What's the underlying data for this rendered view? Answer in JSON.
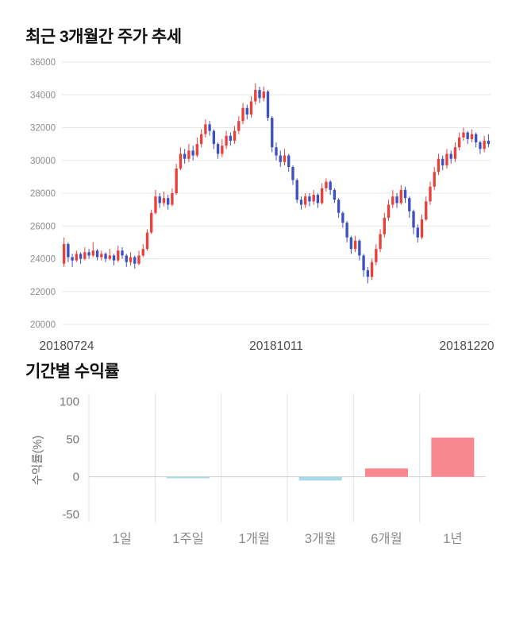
{
  "sections": {
    "price_chart": {
      "title": "최근 3개월간 주가 추세"
    },
    "returns_chart": {
      "title": "기간별 수익률"
    }
  },
  "chart_data": [
    {
      "type": "candlestick",
      "title": "최근 3개월간 주가 추세",
      "x_tick_labels": [
        "20180724",
        "20181011",
        "20181220"
      ],
      "ylim": [
        20000,
        36000
      ],
      "y_ticks": [
        36000,
        34000,
        32000,
        30000,
        28000,
        26000,
        24000,
        22000,
        20000
      ],
      "grid": "horizontal",
      "legend": "none",
      "up_color": "#e8413c",
      "down_color": "#3f51c1",
      "candles_format": [
        "open",
        "high",
        "low",
        "close"
      ],
      "candles": [
        [
          23700,
          25300,
          23500,
          24900
        ],
        [
          24900,
          25000,
          23800,
          24100
        ],
        [
          24100,
          24300,
          23500,
          23900
        ],
        [
          23900,
          24500,
          23800,
          24300
        ],
        [
          24300,
          24400,
          23700,
          24000
        ],
        [
          24000,
          24700,
          23900,
          24400
        ],
        [
          24400,
          24600,
          24000,
          24200
        ],
        [
          24200,
          25000,
          24100,
          24500
        ],
        [
          24500,
          24600,
          23900,
          24100
        ],
        [
          24100,
          24500,
          23900,
          24300
        ],
        [
          24300,
          24400,
          23800,
          24000
        ],
        [
          24000,
          24600,
          23900,
          24200
        ],
        [
          24200,
          24300,
          23600,
          23900
        ],
        [
          23900,
          24800,
          23800,
          24500
        ],
        [
          24500,
          24700,
          24000,
          24200
        ],
        [
          24200,
          24300,
          23500,
          23800
        ],
        [
          23800,
          24400,
          23600,
          24100
        ],
        [
          24100,
          24200,
          23400,
          23700
        ],
        [
          23700,
          24500,
          23600,
          24200
        ],
        [
          24200,
          24900,
          24100,
          24600
        ],
        [
          24600,
          25800,
          24500,
          25600
        ],
        [
          25600,
          27000,
          25500,
          26800
        ],
        [
          26800,
          28200,
          26700,
          27800
        ],
        [
          27800,
          28000,
          27100,
          27400
        ],
        [
          27400,
          28100,
          27200,
          27700
        ],
        [
          27700,
          27900,
          27000,
          27300
        ],
        [
          27300,
          28300,
          27200,
          28000
        ],
        [
          28000,
          29800,
          27900,
          29500
        ],
        [
          29500,
          30800,
          29400,
          30400
        ],
        [
          30400,
          30700,
          29800,
          30100
        ],
        [
          30100,
          31000,
          29900,
          30600
        ],
        [
          30600,
          30900,
          30000,
          30300
        ],
        [
          30300,
          31400,
          30200,
          31000
        ],
        [
          31000,
          31900,
          30800,
          31600
        ],
        [
          31600,
          32500,
          31400,
          32200
        ],
        [
          32200,
          32400,
          31500,
          31800
        ],
        [
          31800,
          31900,
          30700,
          31000
        ],
        [
          31000,
          31100,
          30100,
          30400
        ],
        [
          30400,
          31300,
          30200,
          30900
        ],
        [
          30900,
          31800,
          30700,
          31500
        ],
        [
          31500,
          31700,
          30900,
          31200
        ],
        [
          31200,
          32100,
          31000,
          31800
        ],
        [
          31800,
          32700,
          31600,
          32400
        ],
        [
          32400,
          33500,
          32200,
          33200
        ],
        [
          33200,
          33400,
          32500,
          32800
        ],
        [
          32800,
          33900,
          32600,
          33600
        ],
        [
          33600,
          34700,
          33400,
          34300
        ],
        [
          34300,
          34500,
          33500,
          33800
        ],
        [
          33800,
          34500,
          33600,
          34200
        ],
        [
          34200,
          34300,
          32400,
          32600
        ],
        [
          32600,
          32700,
          30500,
          30800
        ],
        [
          30800,
          31100,
          30000,
          30300
        ],
        [
          30300,
          30600,
          29600,
          29900
        ],
        [
          29900,
          30700,
          29700,
          30300
        ],
        [
          30300,
          30400,
          29300,
          29600
        ],
        [
          29600,
          29700,
          28500,
          28800
        ],
        [
          28800,
          28900,
          27400,
          27600
        ],
        [
          27600,
          27800,
          27000,
          27300
        ],
        [
          27300,
          28000,
          27100,
          27800
        ],
        [
          27800,
          28000,
          27200,
          27500
        ],
        [
          27500,
          28200,
          27300,
          27900
        ],
        [
          27900,
          28000,
          27100,
          27400
        ],
        [
          27400,
          28600,
          27300,
          28300
        ],
        [
          28300,
          28900,
          28100,
          28700
        ],
        [
          28700,
          28800,
          27900,
          28200
        ],
        [
          28200,
          28300,
          27400,
          27600
        ],
        [
          27600,
          27700,
          26500,
          26800
        ],
        [
          26800,
          26900,
          25900,
          26200
        ],
        [
          26200,
          26300,
          25000,
          25300
        ],
        [
          25300,
          25400,
          24300,
          24600
        ],
        [
          24600,
          25400,
          24400,
          25100
        ],
        [
          25100,
          25200,
          23900,
          24200
        ],
        [
          24200,
          24300,
          22900,
          23300
        ],
        [
          23300,
          23500,
          22500,
          22900
        ],
        [
          22900,
          24000,
          22700,
          23800
        ],
        [
          23800,
          24900,
          23600,
          24600
        ],
        [
          24600,
          25800,
          24400,
          25500
        ],
        [
          25500,
          26800,
          25300,
          26500
        ],
        [
          26500,
          27600,
          26300,
          27300
        ],
        [
          27300,
          28200,
          27100,
          27800
        ],
        [
          27800,
          28000,
          27100,
          27400
        ],
        [
          27400,
          28500,
          27300,
          28200
        ],
        [
          28200,
          28400,
          27400,
          27700
        ],
        [
          27700,
          27800,
          26500,
          26900
        ],
        [
          26900,
          27000,
          25500,
          25900
        ],
        [
          25900,
          26100,
          25000,
          25300
        ],
        [
          25300,
          26700,
          25200,
          26400
        ],
        [
          26400,
          27800,
          26300,
          27500
        ],
        [
          27500,
          28700,
          27300,
          28400
        ],
        [
          28400,
          29600,
          28200,
          29300
        ],
        [
          29300,
          30400,
          29100,
          30100
        ],
        [
          30100,
          30300,
          29400,
          29700
        ],
        [
          29700,
          30700,
          29500,
          30400
        ],
        [
          30400,
          30600,
          29800,
          30100
        ],
        [
          30100,
          31100,
          29900,
          30800
        ],
        [
          30800,
          31700,
          30600,
          31400
        ],
        [
          31400,
          32000,
          31200,
          31700
        ],
        [
          31700,
          31800,
          31000,
          31300
        ],
        [
          31300,
          31900,
          31100,
          31600
        ],
        [
          31600,
          31700,
          30800,
          31100
        ],
        [
          31100,
          31200,
          30400,
          30700
        ],
        [
          30700,
          31500,
          30500,
          31200
        ],
        [
          31200,
          31600,
          30800,
          31000
        ]
      ]
    },
    {
      "type": "bar",
      "title": "기간별 수익률",
      "categories": [
        "1일",
        "1주일",
        "1개월",
        "3개월",
        "6개월",
        "1년"
      ],
      "values": [
        0,
        -2,
        0,
        -5,
        11,
        52
      ],
      "ylabel": "수익률(%)",
      "xlabel": "",
      "y_ticks": [
        100,
        50,
        0,
        -50
      ],
      "ylim": [
        -50,
        100
      ],
      "grid": "vertical",
      "legend": "none",
      "positive_color": "#f8878f",
      "negative_color": "#a6d9ea"
    }
  ]
}
